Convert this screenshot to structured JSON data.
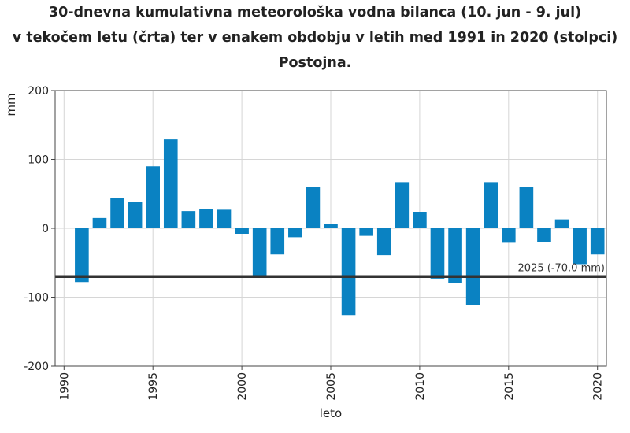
{
  "chart_data": {
    "type": "bar",
    "title_lines": [
      "30-dnevna kumulativna meteorološka vodna bilanca (10. jun - 9. jul)",
      "v tekočem letu (črta) ter v enakem obdobju v letih med 1991 in 2020 (stolpci)",
      "Postojna."
    ],
    "xlabel": "leto",
    "ylabel": "mm",
    "ylim": [
      -200,
      200
    ],
    "y_ticks": [
      200,
      100,
      0,
      -100,
      -200
    ],
    "y_tick_labels": [
      "200",
      "100",
      "0",
      "-100",
      "-200"
    ],
    "x_range": [
      1989.5,
      2020.5
    ],
    "x_ticks": [
      1990,
      1995,
      2000,
      2005,
      2010,
      2015,
      2020
    ],
    "x_tick_labels": [
      "1990",
      "1995",
      "2000",
      "2005",
      "2010",
      "2015",
      "2020"
    ],
    "grid": true,
    "bar_color": "#0a82c2",
    "categories": [
      1991,
      1992,
      1993,
      1994,
      1995,
      1996,
      1997,
      1998,
      1999,
      2000,
      2001,
      2002,
      2003,
      2004,
      2005,
      2006,
      2007,
      2008,
      2009,
      2010,
      2011,
      2012,
      2013,
      2014,
      2015,
      2016,
      2017,
      2018,
      2019,
      2020
    ],
    "values": [
      -78,
      15,
      44,
      38,
      90,
      129,
      25,
      28,
      27,
      -8,
      -72,
      -38,
      -13,
      60,
      6,
      -126,
      -11,
      -39,
      67,
      24,
      -73,
      -80,
      -111,
      67,
      -21,
      60,
      -20,
      13,
      -52,
      -38
    ],
    "reference_line": {
      "value": -70.0,
      "label": "2025 (-70.0 mm)",
      "color": "#333333"
    }
  }
}
